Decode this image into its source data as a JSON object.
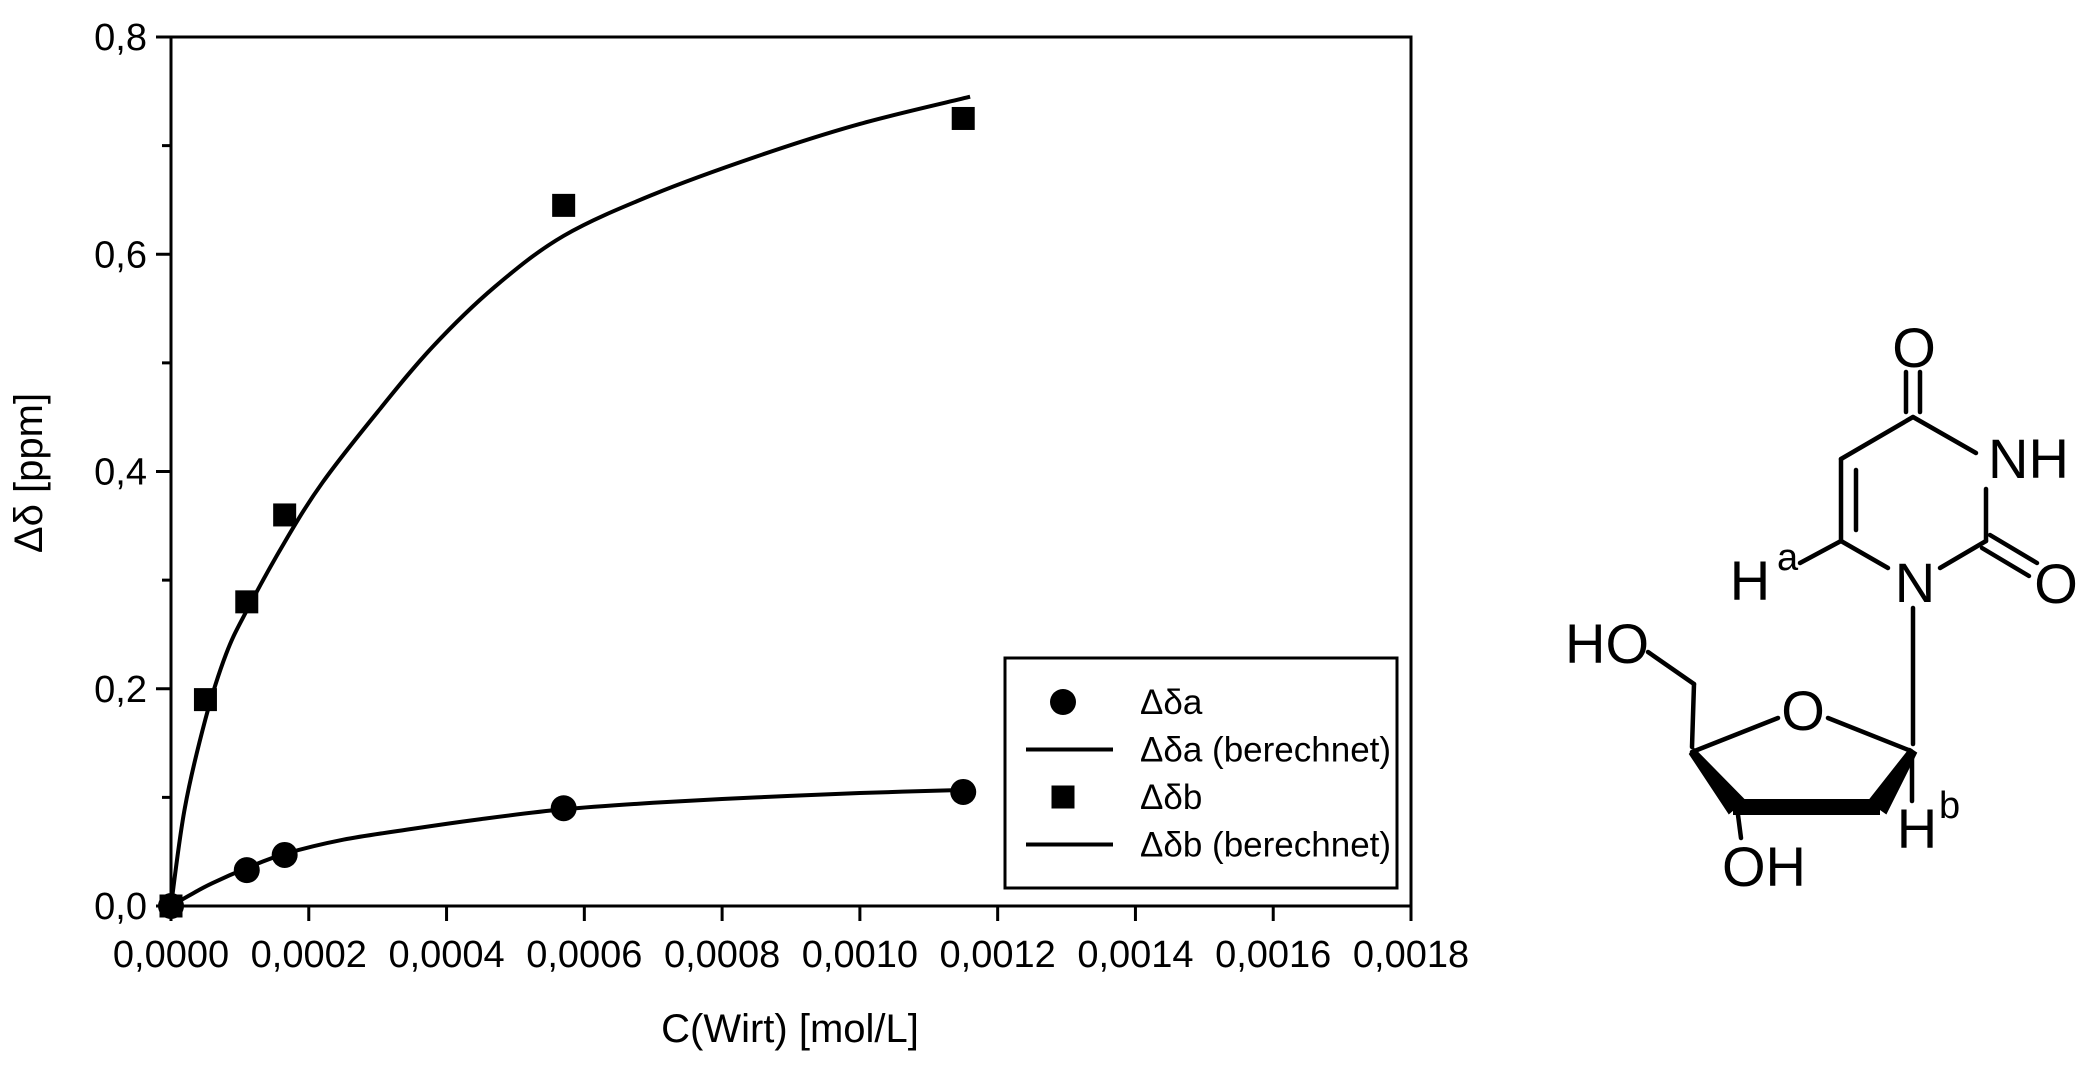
{
  "figure": {
    "background": "#ffffff",
    "foreground": "#000000"
  },
  "chart_data": {
    "type": "scatter",
    "title": "",
    "xlabel": "C(Wirt) [mol/L]",
    "ylabel": "Δδ [ppm]",
    "xlim": [
      0,
      0.0018
    ],
    "ylim": [
      0,
      0.8
    ],
    "grid": false,
    "x_tick_values": [
      0,
      0.0002,
      0.0004,
      0.0006,
      0.0008,
      0.001,
      0.0012,
      0.0014,
      0.0016,
      0.0018
    ],
    "x_tick_labels": [
      "0,0000",
      "0,0002",
      "0,0004",
      "0,0006",
      "0,0008",
      "0,0010",
      "0,0012",
      "0,0014",
      "0,0016",
      "0,0018"
    ],
    "y_tick_values": [
      0,
      0.2,
      0.4,
      0.6,
      0.8
    ],
    "y_tick_labels": [
      "0,0",
      "0,2",
      "0,4",
      "0,6",
      "0,8"
    ],
    "y_minor_tick_values": [
      0.1,
      0.3,
      0.5,
      0.7
    ],
    "series": [
      {
        "name": "Δδa",
        "kind": "scatter",
        "marker": "circle",
        "x": [
          0,
          0.00011,
          0.000165,
          0.00057,
          0.00115
        ],
        "y": [
          0,
          0.033,
          0.047,
          0.09,
          0.105
        ]
      },
      {
        "name": "Δδa (berechnet)",
        "kind": "line",
        "x": [
          0,
          3e-05,
          6e-05,
          0.00011,
          0.000165,
          0.00025,
          0.00035,
          0.00045,
          0.00057,
          0.0007,
          0.00085,
          0.001,
          0.00116
        ],
        "y": [
          0,
          0.011,
          0.021,
          0.035,
          0.048,
          0.061,
          0.071,
          0.08,
          0.089,
          0.095,
          0.1,
          0.104,
          0.107
        ]
      },
      {
        "name": "Δδb",
        "kind": "scatter",
        "marker": "square",
        "x": [
          0,
          5e-05,
          0.00011,
          0.000165,
          0.00057,
          0.00115
        ],
        "y": [
          0,
          0.19,
          0.28,
          0.36,
          0.645,
          0.725
        ]
      },
      {
        "name": "Δδb (berechnet)",
        "kind": "line",
        "x": [
          0,
          2e-05,
          5e-05,
          8e-05,
          0.00011,
          0.000165,
          0.00022,
          0.0003,
          0.00038,
          0.00047,
          0.00057,
          0.0007,
          0.00085,
          0.001,
          0.00116
        ],
        "y": [
          0,
          0.09,
          0.172,
          0.232,
          0.272,
          0.335,
          0.39,
          0.455,
          0.515,
          0.57,
          0.617,
          0.655,
          0.69,
          0.72,
          0.745
        ]
      }
    ],
    "legend": {
      "position": "bottom-right",
      "entries": [
        {
          "symbol": "circle",
          "label": "Δδa"
        },
        {
          "symbol": "line",
          "label": "Δδa (berechnet)"
        },
        {
          "symbol": "square",
          "label": "Δδb"
        },
        {
          "symbol": "line",
          "label": "Δδb (berechnet)"
        }
      ]
    }
  },
  "molecule": {
    "labels": {
      "carbonyl_top_o": "O",
      "ring_nh": "NH",
      "carbonyl_right_o": "O",
      "ring_n": "N",
      "ha_h": "H",
      "ha_sup": "a",
      "ho_left": "HO",
      "sugar_ring_o": "O",
      "oh_bottom": "OH",
      "hb_h": "H",
      "hb_sup": "b"
    }
  }
}
